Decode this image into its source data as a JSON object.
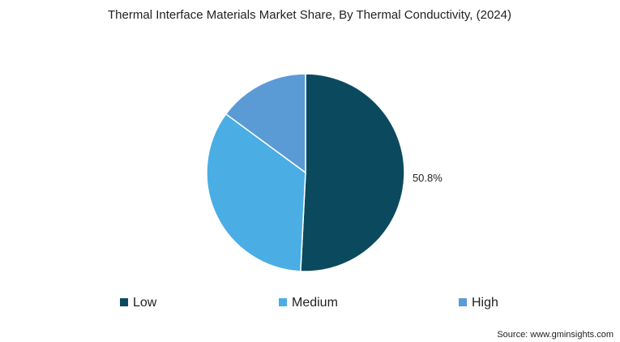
{
  "chart_data": {
    "type": "pie",
    "title": "Thermal Interface Materials Market Share, By Thermal Conductivity, (2024)",
    "categories": [
      "Low",
      "Medium",
      "High"
    ],
    "values": [
      50.8,
      34.3,
      14.9
    ],
    "value_labels": [
      "50.8%",
      null,
      null
    ],
    "colors": [
      "#0b4a5e",
      "#4aaee4",
      "#5b9bd5"
    ],
    "source": "Source: www.gminsights.com"
  }
}
